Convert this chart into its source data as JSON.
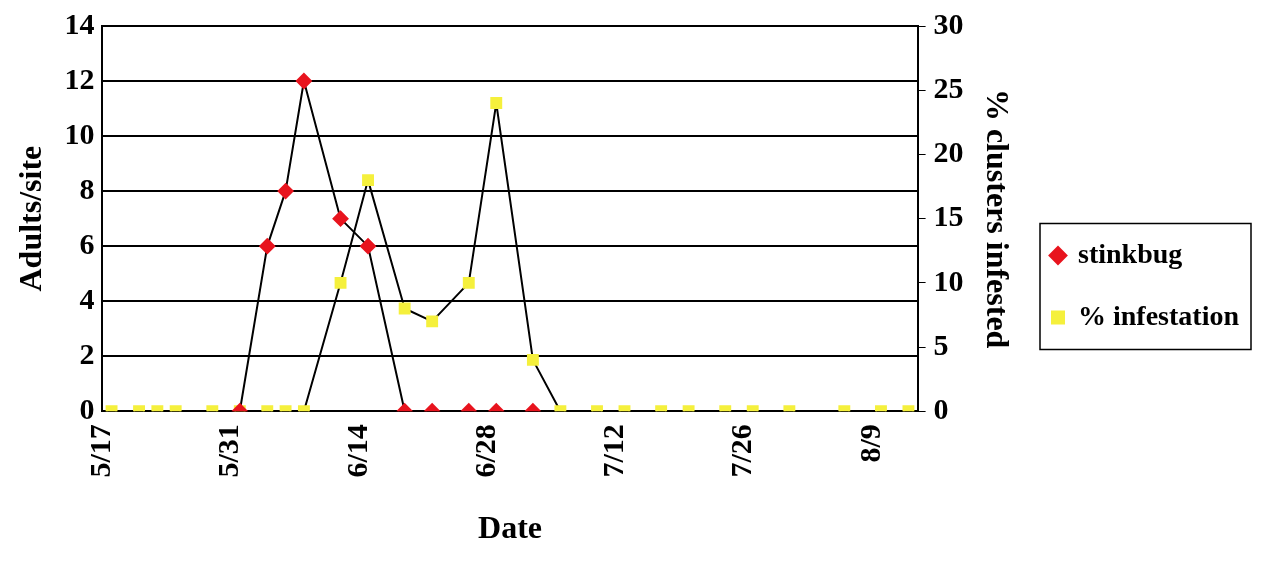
{
  "chart_data": {
    "type": "line",
    "xlabel": "Date",
    "ylabel": "Adults/site",
    "y2label": "% clusters infested",
    "xlim": [
      "--05-17",
      "--08-14"
    ],
    "xticks": [
      {
        "value": "--05-17",
        "label": "5/17"
      },
      {
        "value": "--05-31",
        "label": "5/31"
      },
      {
        "value": "--06-14",
        "label": "6/14"
      },
      {
        "value": "--06-28",
        "label": "6/28"
      },
      {
        "value": "--07-12",
        "label": "7/12"
      },
      {
        "value": "--07-26",
        "label": "7/26"
      },
      {
        "value": "--08-09",
        "label": "8/9"
      }
    ],
    "ylim": [
      0,
      14
    ],
    "yticks": [
      0,
      2,
      4,
      6,
      8,
      10,
      12,
      14
    ],
    "y2lim": [
      0,
      30
    ],
    "y2ticks": [
      0,
      5,
      10,
      15,
      20,
      25,
      30
    ],
    "grid": "y",
    "legend": "right",
    "series": [
      {
        "name": "stinkbug",
        "color": "#e8141e",
        "marker": "diamond",
        "x": [
          "--06-01",
          "--06-04",
          "--06-06",
          "--06-08",
          "--06-12",
          "--06-15",
          "--06-19",
          "--06-22",
          "--06-26",
          "--06-29",
          "--07-03"
        ],
        "values": [
          0,
          6,
          8,
          12,
          7,
          6,
          0,
          0,
          0,
          0,
          0
        ]
      },
      {
        "name": "% infestation",
        "color": "#f5f03c",
        "marker": "square",
        "axis": "y2",
        "x": [
          "--05-18",
          "--05-21",
          "--05-23",
          "--05-25",
          "--05-29",
          "--06-01",
          "--06-04",
          "--06-06",
          "--06-08",
          "--06-12",
          "--06-15",
          "--06-19",
          "--06-22",
          "--06-26",
          "--06-29",
          "--07-03",
          "--07-06",
          "--07-10",
          "--07-13",
          "--07-17",
          "--07-20",
          "--07-24",
          "--07-27",
          "--07-31",
          "--08-06",
          "--08-10",
          "--08-13"
        ],
        "values": [
          0,
          0,
          0,
          0,
          0,
          0,
          0,
          0,
          0,
          10,
          18,
          8,
          7,
          10,
          24,
          4,
          0,
          0,
          0,
          0,
          0,
          0,
          0,
          0,
          0,
          0,
          0
        ]
      }
    ]
  }
}
